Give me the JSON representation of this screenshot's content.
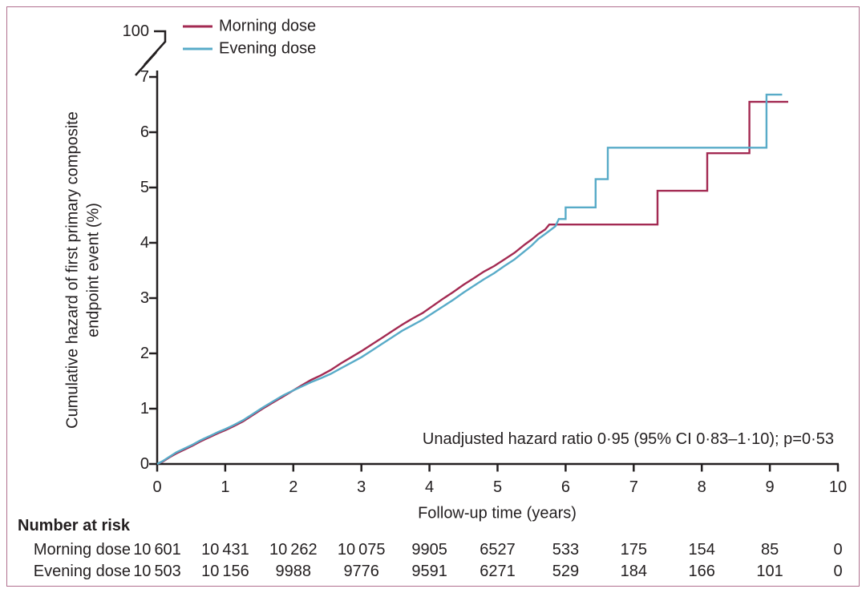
{
  "chart_data": {
    "type": "line",
    "subtype": "cumulative-hazard-step-curves",
    "xlabel": "Follow-up time (years)",
    "ylabel_line1": "Cumulative hazard of first primary composite",
    "ylabel_line2": "endpoint event (%)",
    "xlim": [
      0,
      10
    ],
    "ylim": [
      0,
      7
    ],
    "x_ticks": [
      "0",
      "1",
      "2",
      "3",
      "4",
      "5",
      "6",
      "7",
      "8",
      "9",
      "10"
    ],
    "y_ticks": [
      "0",
      "1",
      "2",
      "3",
      "4",
      "5",
      "6",
      "7"
    ],
    "y_axis_break_top_label": "100",
    "grid": "off",
    "legend_position": "top-left-inside",
    "annotation": "Unadjusted hazard ratio 0·95 (95% CI 0·83–1·10); p=0·53",
    "series": [
      {
        "name": "Morning dose",
        "color": "#a32a52",
        "points": [
          [
            0,
            0
          ],
          [
            0.08,
            0.04
          ],
          [
            0.18,
            0.12
          ],
          [
            0.28,
            0.19
          ],
          [
            0.4,
            0.26
          ],
          [
            0.52,
            0.33
          ],
          [
            0.64,
            0.41
          ],
          [
            0.78,
            0.49
          ],
          [
            0.9,
            0.56
          ],
          [
            1.0,
            0.61
          ],
          [
            1.12,
            0.68
          ],
          [
            1.26,
            0.77
          ],
          [
            1.4,
            0.88
          ],
          [
            1.55,
            1.0
          ],
          [
            1.7,
            1.11
          ],
          [
            1.85,
            1.22
          ],
          [
            2.0,
            1.33
          ],
          [
            2.12,
            1.42
          ],
          [
            2.26,
            1.52
          ],
          [
            2.4,
            1.6
          ],
          [
            2.55,
            1.7
          ],
          [
            2.7,
            1.82
          ],
          [
            2.85,
            1.93
          ],
          [
            3.0,
            2.04
          ],
          [
            3.15,
            2.16
          ],
          [
            3.3,
            2.28
          ],
          [
            3.45,
            2.4
          ],
          [
            3.6,
            2.52
          ],
          [
            3.75,
            2.63
          ],
          [
            3.9,
            2.73
          ],
          [
            4.05,
            2.86
          ],
          [
            4.2,
            2.99
          ],
          [
            4.35,
            3.11
          ],
          [
            4.5,
            3.24
          ],
          [
            4.65,
            3.36
          ],
          [
            4.8,
            3.48
          ],
          [
            4.95,
            3.58
          ],
          [
            5.1,
            3.7
          ],
          [
            5.25,
            3.82
          ],
          [
            5.4,
            3.97
          ],
          [
            5.5,
            4.06
          ],
          [
            5.6,
            4.16
          ],
          [
            5.7,
            4.24
          ],
          [
            5.76,
            4.33
          ],
          [
            7.35,
            4.33
          ],
          [
            7.35,
            4.94
          ],
          [
            8.08,
            4.94
          ],
          [
            8.08,
            5.62
          ],
          [
            8.7,
            5.62
          ],
          [
            8.7,
            6.55
          ],
          [
            9.27,
            6.55
          ]
        ]
      },
      {
        "name": "Evening dose",
        "color": "#58abc8",
        "points": [
          [
            0,
            0
          ],
          [
            0.08,
            0.05
          ],
          [
            0.18,
            0.13
          ],
          [
            0.28,
            0.21
          ],
          [
            0.4,
            0.28
          ],
          [
            0.52,
            0.35
          ],
          [
            0.64,
            0.43
          ],
          [
            0.78,
            0.51
          ],
          [
            0.9,
            0.58
          ],
          [
            1.0,
            0.63
          ],
          [
            1.12,
            0.7
          ],
          [
            1.26,
            0.79
          ],
          [
            1.4,
            0.9
          ],
          [
            1.55,
            1.02
          ],
          [
            1.7,
            1.13
          ],
          [
            1.85,
            1.24
          ],
          [
            2.0,
            1.33
          ],
          [
            2.12,
            1.4
          ],
          [
            2.26,
            1.48
          ],
          [
            2.4,
            1.55
          ],
          [
            2.55,
            1.63
          ],
          [
            2.7,
            1.73
          ],
          [
            2.85,
            1.83
          ],
          [
            3.0,
            1.93
          ],
          [
            3.15,
            2.05
          ],
          [
            3.3,
            2.17
          ],
          [
            3.45,
            2.29
          ],
          [
            3.6,
            2.41
          ],
          [
            3.75,
            2.51
          ],
          [
            3.9,
            2.61
          ],
          [
            4.05,
            2.73
          ],
          [
            4.2,
            2.85
          ],
          [
            4.35,
            2.97
          ],
          [
            4.5,
            3.1
          ],
          [
            4.65,
            3.22
          ],
          [
            4.8,
            3.34
          ],
          [
            4.95,
            3.45
          ],
          [
            5.1,
            3.58
          ],
          [
            5.25,
            3.7
          ],
          [
            5.4,
            3.85
          ],
          [
            5.5,
            3.95
          ],
          [
            5.6,
            4.07
          ],
          [
            5.7,
            4.16
          ],
          [
            5.85,
            4.3
          ],
          [
            5.9,
            4.43
          ],
          [
            6.0,
            4.43
          ],
          [
            6.0,
            4.64
          ],
          [
            6.44,
            4.64
          ],
          [
            6.44,
            5.15
          ],
          [
            6.62,
            5.15
          ],
          [
            6.62,
            5.72
          ],
          [
            8.95,
            5.72
          ],
          [
            8.95,
            6.68
          ],
          [
            9.18,
            6.68
          ]
        ]
      }
    ],
    "number_at_risk": {
      "title": "Number at risk",
      "rows": [
        {
          "label": "Morning dose",
          "values": [
            "10 601",
            "10 431",
            "10 262",
            "10 075",
            "9905",
            "6527",
            "533",
            "175",
            "154",
            "85",
            "0"
          ]
        },
        {
          "label": "Evening dose",
          "values": [
            "10 503",
            "10 156",
            "9988",
            "9776",
            "9591",
            "6271",
            "529",
            "184",
            "166",
            "101",
            "0"
          ]
        }
      ]
    }
  },
  "colors": {
    "axis": "#231f20",
    "text": "#231f20",
    "border": "#b06f8e",
    "background": "#ffffff",
    "morning_line": "#a32a52",
    "evening_line": "#58abc8"
  }
}
